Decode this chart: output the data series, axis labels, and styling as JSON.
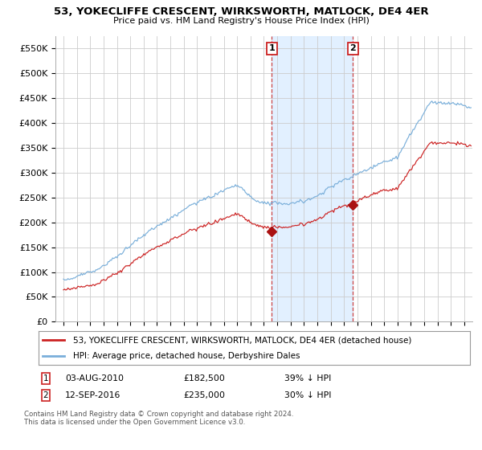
{
  "title": "53, YOKECLIFFE CRESCENT, WIRKSWORTH, MATLOCK, DE4 4ER",
  "subtitle": "Price paid vs. HM Land Registry's House Price Index (HPI)",
  "sale1_date": "03-AUG-2010",
  "sale1_price": 182500,
  "sale1_label": "1",
  "sale1_pct": "39% ↓ HPI",
  "sale2_date": "12-SEP-2016",
  "sale2_price": 235000,
  "sale2_label": "2",
  "sale2_pct": "30% ↓ HPI",
  "legend_property": "53, YOKECLIFFE CRESCENT, WIRKSWORTH, MATLOCK, DE4 4ER (detached house)",
  "legend_hpi": "HPI: Average price, detached house, Derbyshire Dales",
  "footnote": "Contains HM Land Registry data © Crown copyright and database right 2024.\nThis data is licensed under the Open Government Licence v3.0.",
  "hpi_color": "#7aafda",
  "property_color": "#cc2222",
  "sale_marker_color": "#aa1111",
  "background_color": "#ffffff",
  "grid_color": "#cccccc",
  "highlight_color": "#ddeeff",
  "ylim": [
    0,
    575000
  ],
  "yticks": [
    0,
    50000,
    100000,
    150000,
    200000,
    250000,
    300000,
    350000,
    400000,
    450000,
    500000,
    550000
  ]
}
